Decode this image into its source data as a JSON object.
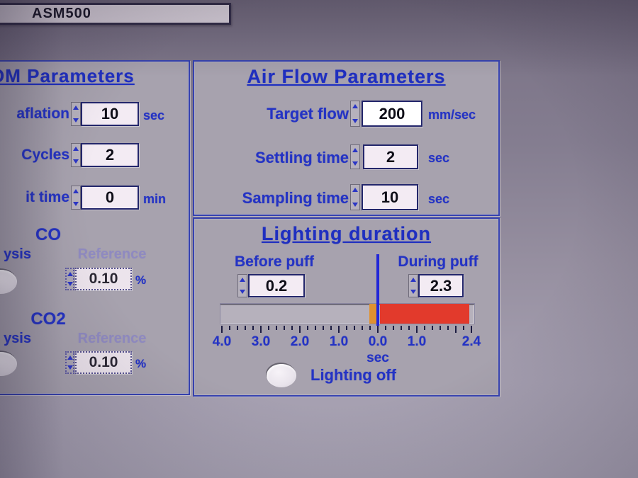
{
  "window_title": "ASM500",
  "pm_panel": {
    "header": "OM Parameters",
    "fields": [
      {
        "label": "aflation",
        "value": "10",
        "unit": "sec"
      },
      {
        "label": "Cycles",
        "value": "2",
        "unit": ""
      },
      {
        "label": "it time",
        "value": "0",
        "unit": "min"
      }
    ],
    "co": {
      "header": "CO",
      "analysis_label": "ysis",
      "reference_label": "Reference",
      "value": "0.10",
      "unit": "%"
    },
    "co2": {
      "header": "CO2",
      "analysis_label": "ysis",
      "reference_label": "Reference",
      "value": "0.10",
      "unit": "%"
    }
  },
  "airflow_panel": {
    "header": "Air Flow Parameters",
    "fields": [
      {
        "label": "Target flow",
        "value": "200",
        "unit": "mm/sec"
      },
      {
        "label": "Settling time",
        "value": "2",
        "unit": "sec"
      },
      {
        "label": "Sampling time",
        "value": "10",
        "unit": "sec"
      }
    ]
  },
  "lighting_panel": {
    "header": "Lighting duration",
    "before": {
      "label": "Before puff",
      "value": "0.2",
      "seconds": 0.2
    },
    "during": {
      "label": "During puff",
      "value": "2.3",
      "seconds": 2.3
    },
    "scale": {
      "unit_label": "sec",
      "tick_min": -4.0,
      "tick_max": 2.4,
      "minor_step": 0.2,
      "labels": [
        {
          "text": "4.0",
          "v": -4
        },
        {
          "text": "3.0",
          "v": -3
        },
        {
          "text": "2.0",
          "v": -2
        },
        {
          "text": "1.0",
          "v": -1
        },
        {
          "text": "0.0",
          "v": 0
        },
        {
          "text": "1.0",
          "v": 1
        },
        {
          "text": "2.4",
          "v": 2.4
        }
      ]
    },
    "off_button_label": "Lighting off",
    "colors": {
      "before_segment": "#e0912f",
      "during_segment": "#e23a2c",
      "marker": "#2127d8"
    }
  },
  "colors": {
    "accent_blue": "#2433c4",
    "muted_label": "#8f8ac0",
    "panel_border": "#3642b0",
    "field_bg": "#f3ebf3"
  }
}
